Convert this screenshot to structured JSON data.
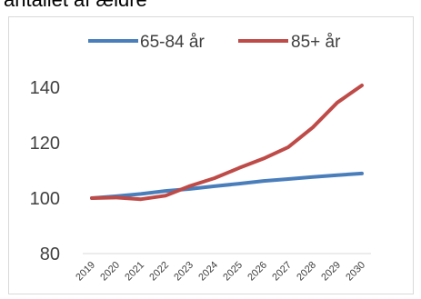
{
  "chart_data": {
    "type": "line",
    "title": "antallet af ældre",
    "x": [
      "2019",
      "2020",
      "2021",
      "2022",
      "2023",
      "2024",
      "2025",
      "2026",
      "2027",
      "2028",
      "2029",
      "2030"
    ],
    "series": [
      {
        "name": "65-84 år",
        "color": "#4a7ebb",
        "values": [
          100,
          100.7,
          101.5,
          102.6,
          103.3,
          104.3,
          105.2,
          106.2,
          106.9,
          107.6,
          108.3,
          108.9
        ]
      },
      {
        "name": "85+ år",
        "color": "#be4b48",
        "values": [
          100,
          100.2,
          99.6,
          100.9,
          104.4,
          107.2,
          110.9,
          114.3,
          118.4,
          125.5,
          134.5,
          142.5
        ]
      }
    ],
    "yticks": [
      80,
      100,
      120,
      140
    ],
    "ylim": [
      80,
      143
    ],
    "grid": false,
    "legend": "top"
  }
}
